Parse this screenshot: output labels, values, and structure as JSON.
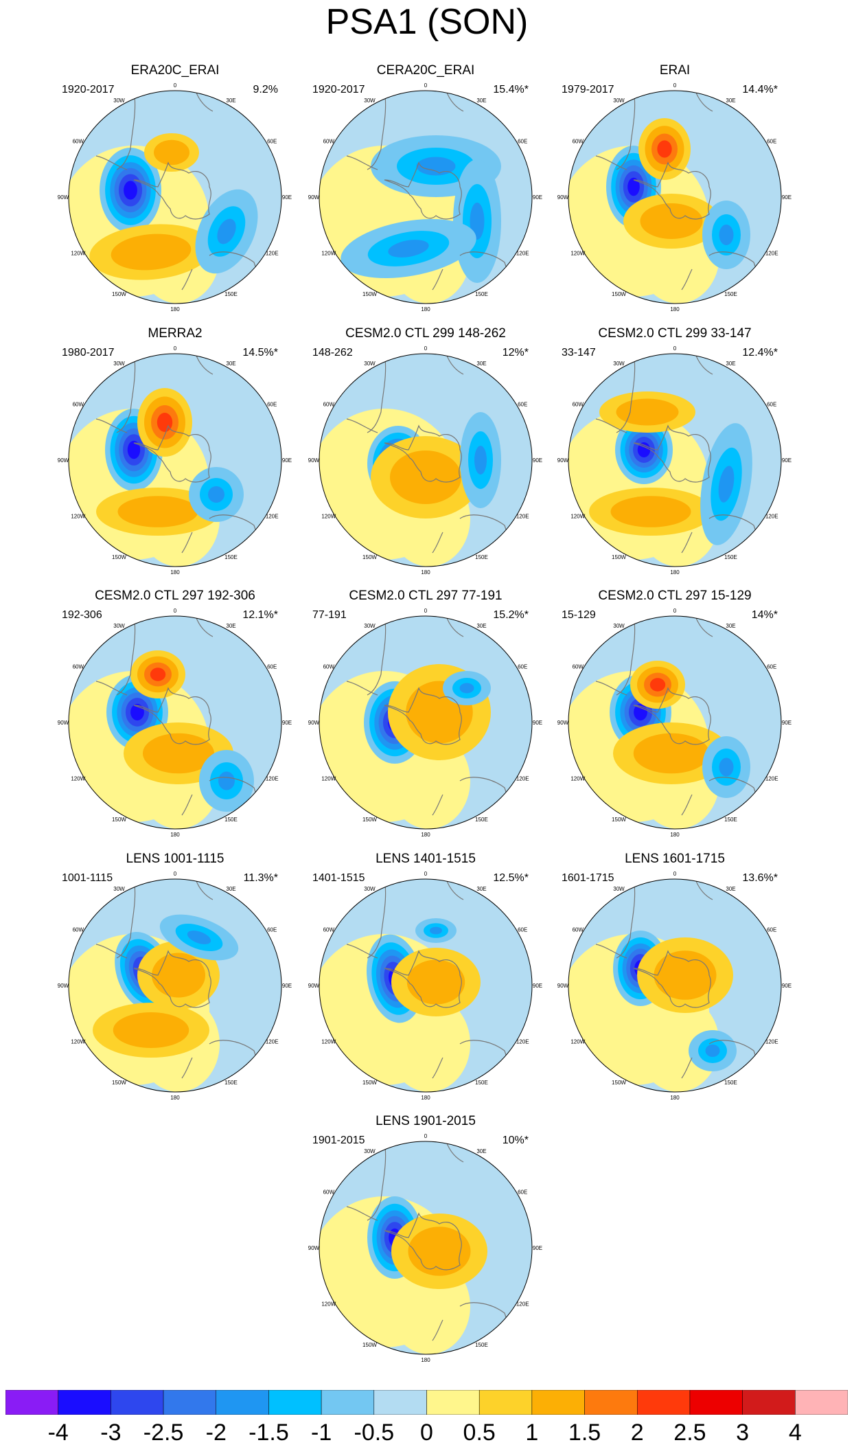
{
  "title": "PSA1 (SON)",
  "panels": [
    {
      "title": "ERA20C_ERAI",
      "period": "1920-2017",
      "variance": "9.2%"
    },
    {
      "title": "CERA20C_ERAI",
      "period": "1920-2017",
      "variance": "15.4%*"
    },
    {
      "title": "ERAI",
      "period": "1979-2017",
      "variance": "14.4%*"
    },
    {
      "title": "MERRA2",
      "period": "1980-2017",
      "variance": "14.5%*"
    },
    {
      "title": "CESM2.0 CTL 299 148-262",
      "period": "148-262",
      "variance": "12%*"
    },
    {
      "title": "CESM2.0 CTL 299 33-147",
      "period": "33-147",
      "variance": "12.4%*"
    },
    {
      "title": "CESM2.0 CTL 297 192-306",
      "period": "192-306",
      "variance": "12.1%*"
    },
    {
      "title": "CESM2.0 CTL 297 77-191",
      "period": "77-191",
      "variance": "15.2%*"
    },
    {
      "title": "CESM2.0 CTL 297 15-129",
      "period": "15-129",
      "variance": "14%*"
    },
    {
      "title": "LENS 1001-1115",
      "period": "1001-1115",
      "variance": "11.3%*"
    },
    {
      "title": "LENS 1401-1515",
      "period": "1401-1515",
      "variance": "12.5%*"
    },
    {
      "title": "LENS 1601-1715",
      "period": "1601-1715",
      "variance": "13.6%*"
    },
    {
      "title": "LENS 1901-2015",
      "period": "1901-2015",
      "variance": "10%*"
    }
  ],
  "longitude_labels": [
    "0",
    "30E",
    "60E",
    "90E",
    "120E",
    "150E",
    "180",
    "150W",
    "120W",
    "90W",
    "60W",
    "30W"
  ],
  "colorbar": {
    "labels": [
      "-4",
      "-3",
      "-2.5",
      "-2",
      "-1.5",
      "-1",
      "-0.5",
      "0",
      "0.5",
      "1",
      "1.5",
      "2",
      "2.5",
      "3",
      "4"
    ],
    "colors": [
      "#8a1cf5",
      "#1a0dff",
      "#2e47ee",
      "#3278ec",
      "#1f96f2",
      "#00c0ff",
      "#73c7f2",
      "#b3dcf2",
      "#fff68c",
      "#fdd22a",
      "#fcaf05",
      "#fd7a0e",
      "#ff3a0b",
      "#ed0000",
      "#d21b1b",
      "#ffb3b6"
    ]
  }
}
